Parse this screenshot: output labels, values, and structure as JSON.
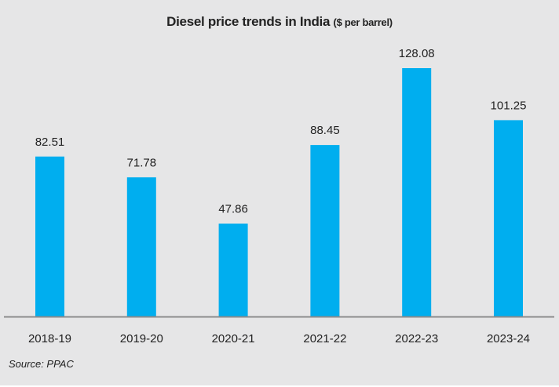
{
  "chart_data": {
    "type": "bar",
    "title": "Diesel price trends in India",
    "title_unit": "($ per barrel)",
    "categories": [
      "2018-19",
      "2019-20",
      "2020-21",
      "2021-22",
      "2022-23",
      "2023-24"
    ],
    "values": [
      82.51,
      71.78,
      47.86,
      88.45,
      128.08,
      101.25
    ],
    "value_labels": [
      "82.51",
      "71.78",
      "47.86",
      "88.45",
      "128.08",
      "101.25"
    ],
    "xlabel": "",
    "ylabel": "",
    "ylim": [
      0,
      128.08
    ],
    "grid": false,
    "legend": "none",
    "bar_color": "#00aeef",
    "axis_color": "#8c8c8c"
  },
  "source": "Source: PPAC"
}
